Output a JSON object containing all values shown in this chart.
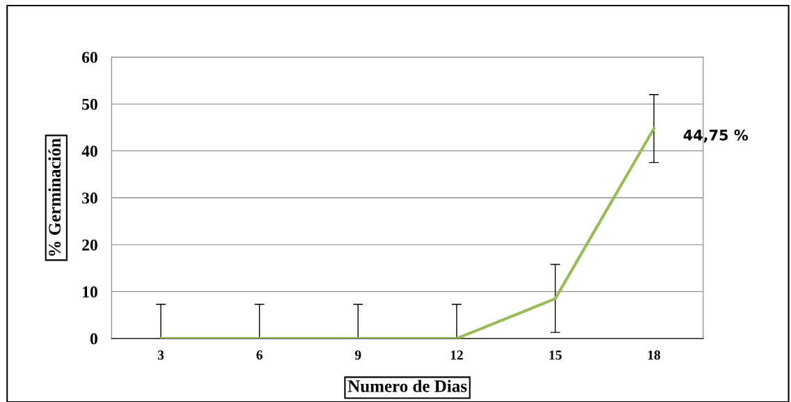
{
  "chart_data": {
    "type": "line",
    "xlabel": "Numero de Dias",
    "ylabel": "% Germinación",
    "categories": [
      "3",
      "6",
      "9",
      "12",
      "15",
      "18"
    ],
    "series": [
      {
        "color": "#9bbb59",
        "values": [
          0,
          0,
          0,
          0,
          8.5,
          44.75
        ],
        "errors": [
          [
            0,
            7.3
          ],
          [
            0,
            7.3
          ],
          [
            0,
            7.3
          ],
          [
            0,
            7.3
          ],
          [
            1.3,
            15.8
          ],
          [
            37.5,
            52
          ]
        ]
      }
    ],
    "ylim": [
      0,
      60
    ],
    "yticks": [
      0,
      10,
      20,
      30,
      40,
      50,
      60
    ],
    "grid": "y",
    "marker": "none",
    "line_style": "solid",
    "annotations": [
      {
        "text": "44,75 %",
        "x": "18",
        "y": 44.75
      }
    ]
  }
}
